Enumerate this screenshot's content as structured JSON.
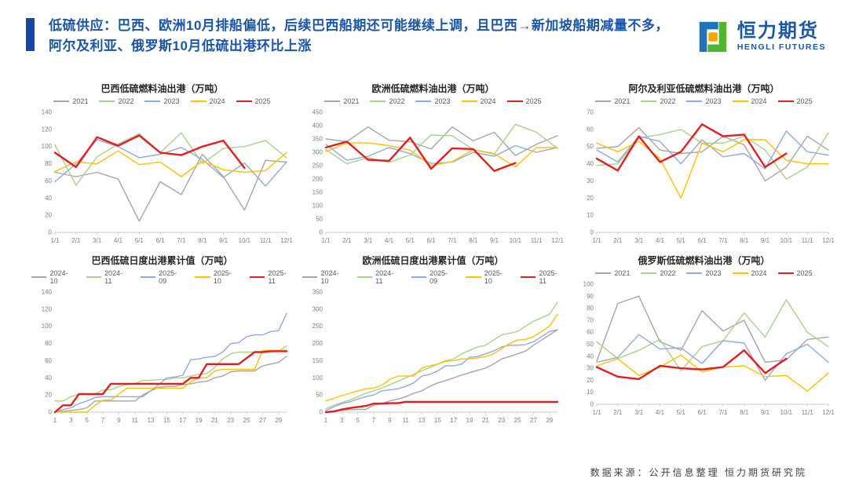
{
  "header": {
    "title": "低硫供应：巴西、欧洲10月排船偏低，后续巴西船期还可能继续上调，且巴西→新加坡船期减量不多，阿尔及利亚、俄罗斯10月低硫出港环比上涨",
    "accent_color": "#17479E",
    "title_color": "#1B55A8"
  },
  "logo": {
    "name_cn": "恒力期货",
    "name_en": "HENGLI FUTURES",
    "brand_blue": "#1D56A5",
    "mark_blue": "#2173B9",
    "mark_green": "#53B332",
    "mark_orange": "#F7A600"
  },
  "footer": {
    "source": "数据来源：公开信息整理  恒力期货研究院"
  },
  "chart_data": [
    {
      "type": "line",
      "title": "巴西低硫燃料油出港（万吨）",
      "x_labels": [
        "1/1",
        "2/1",
        "3/1",
        "4/1",
        "5/1",
        "6/1",
        "7/1",
        "8/1",
        "9/1",
        "10/1",
        "11/1",
        "12/1"
      ],
      "x_tick_every": 1,
      "ylim": [
        0,
        140
      ],
      "y_step": 20,
      "grid": false,
      "legend_position": "top",
      "series": [
        {
          "name": "2021",
          "color": "#A6A6A6",
          "values": [
            70,
            65,
            70,
            62,
            13,
            59,
            44,
            91,
            65,
            26,
            84,
            82
          ]
        },
        {
          "name": "2022",
          "color": "#A9D18E",
          "values": [
            102,
            55,
            88,
            103,
            115,
            93,
            116,
            80,
            98,
            100,
            107,
            87
          ]
        },
        {
          "name": "2023",
          "color": "#8FAADC",
          "values": [
            59,
            80,
            108,
            100,
            87,
            91,
            99,
            85,
            64,
            81,
            54,
            82
          ]
        },
        {
          "name": "2024",
          "color": "#FFC000",
          "values": [
            71,
            82,
            80,
            95,
            79,
            82,
            65,
            83,
            73,
            70,
            72,
            93
          ]
        },
        {
          "name": "2025",
          "color": "#E02020",
          "emphasis": true,
          "values": [
            93,
            76,
            111,
            101,
            113,
            93,
            90,
            100,
            107,
            75
          ]
        }
      ]
    },
    {
      "type": "line",
      "title": "欧洲低硫燃料油出港（万吨）",
      "x_labels": [
        "1/1",
        "2/1",
        "3/1",
        "4/1",
        "5/1",
        "6/1",
        "7/1",
        "8/1",
        "9/1",
        "10/1",
        "11/1",
        "12/1"
      ],
      "x_tick_every": 1,
      "ylim": [
        0,
        450
      ],
      "y_step": 50,
      "grid": false,
      "legend_position": "top",
      "series": [
        {
          "name": "2021",
          "color": "#A6A6A6",
          "values": [
            350,
            340,
            395,
            345,
            340,
            312,
            395,
            343,
            375,
            288,
            330,
            362
          ]
        },
        {
          "name": "2022",
          "color": "#A9D18E",
          "values": [
            310,
            257,
            280,
            262,
            290,
            365,
            362,
            310,
            293,
            405,
            375,
            315
          ]
        },
        {
          "name": "2023",
          "color": "#8FAADC",
          "values": [
            330,
            270,
            285,
            318,
            295,
            258,
            263,
            300,
            285,
            325,
            300,
            318
          ]
        },
        {
          "name": "2024",
          "color": "#FFC000",
          "values": [
            303,
            335,
            335,
            325,
            308,
            250,
            265,
            310,
            295,
            245,
            318,
            318
          ]
        },
        {
          "name": "2025",
          "color": "#E02020",
          "emphasis": true,
          "values": [
            318,
            340,
            272,
            268,
            355,
            238,
            315,
            312,
            230,
            260
          ]
        }
      ]
    },
    {
      "type": "line",
      "title": "阿尔及利亚低硫燃料油出港（万吨）",
      "x_labels": [
        "1/1",
        "2/1",
        "3/1",
        "4/1",
        "5/1",
        "6/1",
        "7/1",
        "8/1",
        "9/1",
        "10/1",
        "11/1",
        "12/1"
      ],
      "x_tick_every": 1,
      "ylim": [
        0,
        70
      ],
      "y_step": 10,
      "grid": false,
      "legend_position": "top",
      "series": [
        {
          "name": "2021",
          "color": "#A6A6A6",
          "values": [
            49,
            50,
            61,
            48,
            46,
            47,
            56,
            51,
            30,
            38,
            56,
            48
          ]
        },
        {
          "name": "2022",
          "color": "#A9D18E",
          "values": [
            39,
            40,
            55,
            57,
            60,
            52,
            52,
            56,
            48,
            31,
            38,
            58
          ]
        },
        {
          "name": "2023",
          "color": "#8FAADC",
          "values": [
            48,
            41,
            56,
            53,
            40,
            54,
            44,
            46,
            37,
            59,
            47,
            45
          ]
        },
        {
          "name": "2024",
          "color": "#FFC000",
          "values": [
            52,
            47,
            53,
            43,
            20,
            52,
            47,
            54,
            54,
            42,
            40,
            40
          ]
        },
        {
          "name": "2025",
          "color": "#E02020",
          "emphasis": true,
          "values": [
            43,
            36,
            56,
            41,
            47,
            63,
            56,
            57,
            38,
            46
          ]
        }
      ]
    },
    {
      "type": "line",
      "title": "巴西低硫日度出港累计值（万吨）",
      "x_labels": [
        "1",
        "2",
        "3",
        "4",
        "5",
        "6",
        "7",
        "8",
        "9",
        "10",
        "11",
        "12",
        "13",
        "14",
        "15",
        "16",
        "17",
        "18",
        "19",
        "20",
        "21",
        "22",
        "23",
        "24",
        "25",
        "26",
        "27",
        "28",
        "29",
        "30"
      ],
      "x_tick_every": 2,
      "ylim": [
        0,
        140
      ],
      "y_step": 20,
      "grid": false,
      "legend_position": "top",
      "series": [
        {
          "name": "2024-10",
          "color": "#A6A6A6",
          "values": [
            0,
            1,
            2,
            3,
            5,
            13,
            13,
            13,
            13,
            13,
            13,
            20,
            25,
            29,
            30,
            30,
            32,
            33,
            35,
            36,
            40,
            42,
            47,
            48,
            48,
            48,
            54,
            56,
            58,
            65
          ]
        },
        {
          "name": "2024-11",
          "color": "#A9D18E",
          "values": [
            13,
            13,
            18,
            21,
            21,
            21,
            26,
            26,
            30,
            32,
            33,
            37,
            37,
            38,
            38,
            40,
            40,
            42,
            44,
            45,
            52,
            62,
            68,
            70,
            70,
            70,
            70,
            71,
            71,
            77
          ]
        },
        {
          "name": "2025-09",
          "color": "#8FAADC",
          "values": [
            0,
            3,
            5,
            10,
            13,
            17,
            18,
            18,
            18,
            18,
            18,
            18,
            25,
            32,
            40,
            41,
            43,
            61,
            62,
            64,
            65,
            70,
            80,
            81,
            88,
            90,
            90,
            94,
            95,
            115
          ]
        },
        {
          "name": "2025-10",
          "color": "#FFC000",
          "values": [
            0,
            0,
            0,
            0,
            0,
            8,
            14,
            14,
            21,
            28,
            28,
            28,
            28,
            28,
            28,
            28,
            28,
            35,
            40,
            40,
            48,
            50,
            50,
            50,
            50,
            50,
            72,
            72,
            72,
            72
          ]
        },
        {
          "name": "2025-11",
          "color": "#E02020",
          "emphasis": true,
          "values": [
            0,
            8,
            8,
            21,
            21,
            21,
            21,
            33,
            33,
            33,
            33,
            33,
            33,
            33,
            33,
            33,
            33,
            40,
            40,
            56,
            56,
            56,
            56,
            56,
            63,
            70,
            70,
            71,
            71,
            71
          ]
        }
      ]
    },
    {
      "type": "line",
      "title": "欧洲低硫日度出港累计值（万吨）",
      "x_labels": [
        "1",
        "2",
        "3",
        "4",
        "5",
        "6",
        "7",
        "8",
        "9",
        "10",
        "11",
        "12",
        "13",
        "14",
        "15",
        "16",
        "17",
        "18",
        "19",
        "20",
        "21",
        "22",
        "23",
        "24",
        "25",
        "26",
        "27",
        "28",
        "29",
        "30"
      ],
      "x_tick_every": 2,
      "ylim": [
        0,
        350
      ],
      "y_step": 50,
      "grid": false,
      "legend_position": "top",
      "series": [
        {
          "name": "2024-10",
          "color": "#A6A6A6",
          "values": [
            0,
            3,
            5,
            7,
            8,
            8,
            20,
            25,
            33,
            38,
            45,
            55,
            62,
            75,
            85,
            92,
            100,
            108,
            115,
            122,
            128,
            140,
            155,
            162,
            170,
            178,
            195,
            210,
            225,
            240
          ]
        },
        {
          "name": "2024-11",
          "color": "#A9D18E",
          "values": [
            10,
            20,
            28,
            35,
            45,
            55,
            62,
            70,
            80,
            90,
            100,
            110,
            120,
            130,
            140,
            150,
            155,
            170,
            180,
            190,
            195,
            210,
            225,
            230,
            235,
            250,
            265,
            275,
            285,
            320
          ]
        },
        {
          "name": "2025-09",
          "color": "#8FAADC",
          "values": [
            5,
            15,
            25,
            30,
            38,
            45,
            50,
            62,
            65,
            68,
            75,
            85,
            105,
            110,
            120,
            135,
            135,
            140,
            160,
            162,
            170,
            178,
            190,
            195,
            195,
            197,
            205,
            220,
            235,
            240
          ]
        },
        {
          "name": "2025-10",
          "color": "#FFC000",
          "values": [
            33,
            40,
            48,
            55,
            62,
            68,
            70,
            78,
            95,
            105,
            105,
            105,
            128,
            135,
            140,
            148,
            150,
            155,
            155,
            158,
            162,
            170,
            185,
            200,
            210,
            212,
            220,
            235,
            250,
            285
          ]
        },
        {
          "name": "2025-11",
          "color": "#E02020",
          "emphasis": true,
          "values": [
            0,
            2,
            8,
            12,
            15,
            18,
            25,
            25,
            26,
            26,
            30,
            30,
            30,
            30,
            30,
            30,
            30,
            30,
            30,
            30,
            30,
            30,
            30,
            30,
            30,
            30,
            30,
            30,
            30,
            30
          ]
        }
      ]
    },
    {
      "type": "line",
      "title": "俄罗斯低硫燃料油出港（万吨）",
      "x_labels": [
        "1/1",
        "2/1",
        "3/1",
        "4/1",
        "5/1",
        "6/1",
        "7/1",
        "8/1",
        "9/1",
        "10/1",
        "11/1",
        "12/1"
      ],
      "x_tick_every": 1,
      "ylim": [
        0,
        100
      ],
      "y_step": 10,
      "grid": false,
      "legend_position": "top",
      "series": [
        {
          "name": "2021",
          "color": "#A6A6A6",
          "values": [
            36,
            84,
            90,
            52,
            45,
            78,
            61,
            70,
            35,
            37,
            54,
            56
          ]
        },
        {
          "name": "2022",
          "color": "#A9D18E",
          "values": [
            52,
            38,
            45,
            54,
            28,
            48,
            53,
            76,
            56,
            87,
            60,
            48
          ]
        },
        {
          "name": "2023",
          "color": "#8FAADC",
          "values": [
            35,
            39,
            58,
            46,
            47,
            34,
            53,
            51,
            20,
            42,
            50,
            35
          ]
        },
        {
          "name": "2024",
          "color": "#FFC000",
          "values": [
            32,
            38,
            24,
            31,
            41,
            27,
            31,
            32,
            23,
            24,
            11,
            26
          ]
        },
        {
          "name": "2025",
          "color": "#E02020",
          "emphasis": true,
          "values": [
            31,
            23,
            21,
            32,
            30,
            29,
            31,
            45,
            26,
            38
          ]
        }
      ]
    }
  ]
}
